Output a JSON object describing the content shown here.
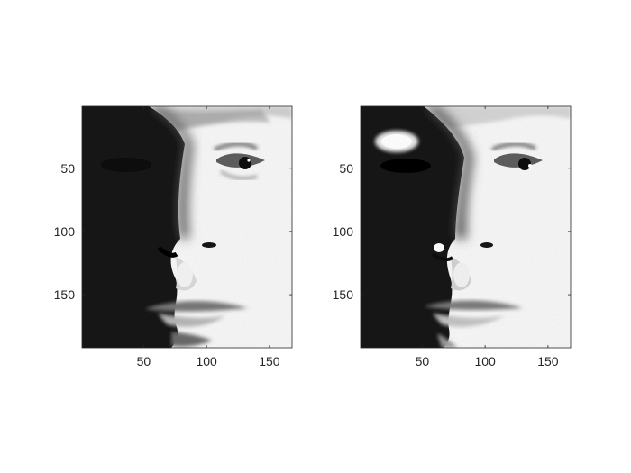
{
  "figure": {
    "background": "#ffffff",
    "axis_color": "#262626"
  },
  "subplots": [
    {
      "image": "grayscale-face-photo-lit-from-right",
      "lighting": "right",
      "xlim": [
        1,
        168
      ],
      "ylim": [
        1,
        192
      ],
      "x_ticks": [
        50,
        100,
        150
      ],
      "y_ticks": [
        50,
        100,
        150
      ],
      "x_tick_labels": [
        "50",
        "100",
        "150"
      ],
      "y_tick_labels": [
        "50",
        "100",
        "150"
      ]
    },
    {
      "image": "grayscale-face-photo-lit-from-right-and-top-left",
      "lighting": "right-and-top-left",
      "xlim": [
        1,
        168
      ],
      "ylim": [
        1,
        192
      ],
      "x_ticks": [
        50,
        100,
        150
      ],
      "y_ticks": [
        50,
        100,
        150
      ],
      "x_tick_labels": [
        "50",
        "100",
        "150"
      ],
      "y_tick_labels": [
        "50",
        "100",
        "150"
      ]
    }
  ]
}
